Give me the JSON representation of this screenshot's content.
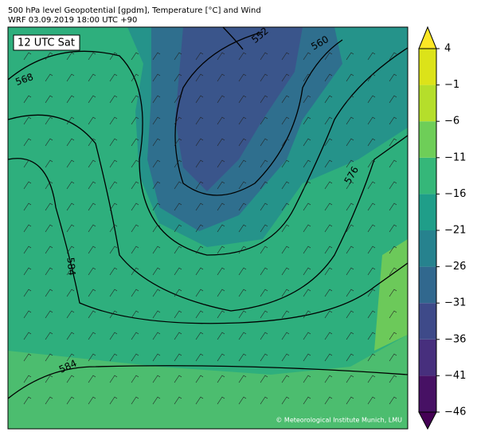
{
  "header": {
    "title": "500 hPa level Geopotential [gpdm], Temperature [°C] and Wind",
    "subtitle": "WRF 03.09.2019 18:00 UTC +90"
  },
  "map": {
    "time_label": "12 UTC Sat",
    "credit": "© Meteorological Institute Munich, LMU",
    "contour_labels": [
      "552",
      "560",
      "568",
      "576",
      "584",
      "584"
    ]
  },
  "colorbar": {
    "ticks": [
      4,
      {
        "value": -1,
        "label": "−1"
      },
      {
        "value": -6,
        "label": "−6"
      },
      {
        "value": -11,
        "label": "−11"
      },
      {
        "value": -16,
        "label": "−16"
      },
      {
        "value": -21,
        "label": "−21"
      },
      {
        "value": -26,
        "label": "−26"
      },
      {
        "value": -31,
        "label": "−31"
      },
      {
        "value": -36,
        "label": "−36"
      },
      {
        "value": -41,
        "label": "−41"
      },
      {
        "value": -46,
        "label": "−46"
      }
    ],
    "lim": [
      -46,
      4
    ],
    "colors": [
      "#471164",
      "#472f7d",
      "#3e4a89",
      "#31688e",
      "#26828e",
      "#1f9e89",
      "#35b779",
      "#6ece58",
      "#b5de2b",
      "#dce319"
    ],
    "extend_colors": [
      "#440154",
      "#fde725"
    ]
  }
}
